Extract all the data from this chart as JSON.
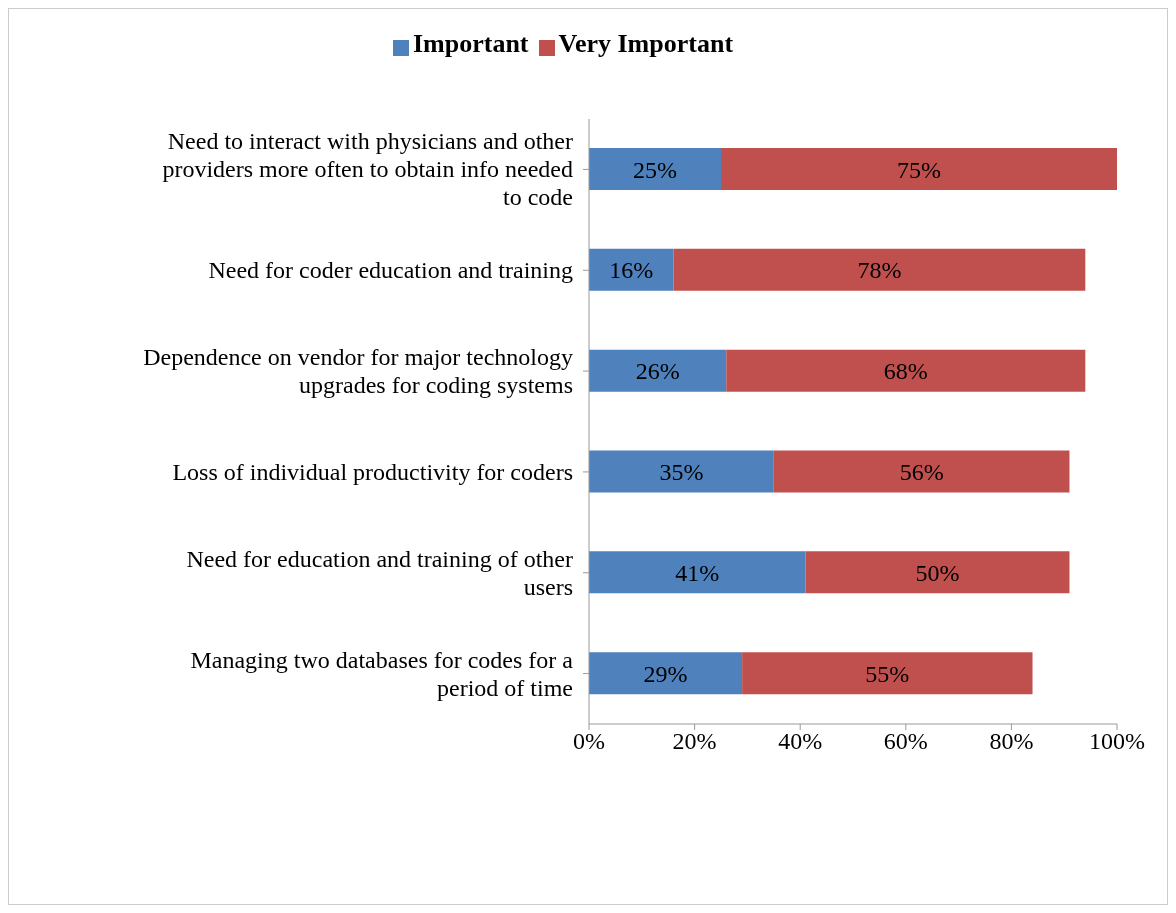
{
  "chart_data": {
    "type": "bar",
    "orientation": "horizontal",
    "stacked": true,
    "categories": [
      "Need to interact with physicians and other providers more often to obtain info needed to code",
      "Need for coder education and training",
      "Dependence on vendor for major technology upgrades for coding systems",
      "Loss of individual productivity for coders",
      "Need for education and training of other users",
      "Managing two databases for codes for a period of time"
    ],
    "series": [
      {
        "name": "Important",
        "color": "#4f81bd",
        "values": [
          25,
          16,
          26,
          35,
          41,
          29
        ],
        "value_labels": [
          "25%",
          "16%",
          "26%",
          "35%",
          "41%",
          "29%"
        ]
      },
      {
        "name": "Very Important",
        "color": "#c0504d",
        "values": [
          75,
          78,
          68,
          56,
          50,
          55
        ],
        "value_labels": [
          "75%",
          "78%",
          "68%",
          "56%",
          "50%",
          "55%"
        ]
      }
    ],
    "xlim": [
      0,
      100
    ],
    "xticks": [
      {
        "value": 0,
        "label": "0%"
      },
      {
        "value": 20,
        "label": "20%"
      },
      {
        "value": 40,
        "label": "40%"
      },
      {
        "value": 60,
        "label": "60%"
      },
      {
        "value": 80,
        "label": "80%"
      },
      {
        "value": 100,
        "label": "100%"
      }
    ],
    "legend": "top"
  }
}
